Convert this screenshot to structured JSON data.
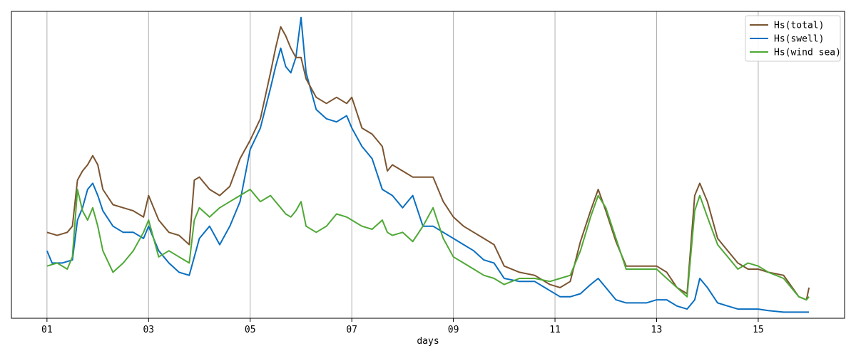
{
  "chart_data": {
    "type": "line",
    "title": "",
    "xlabel": "days",
    "ylabel": "",
    "x_ticks": [
      {
        "day": 1,
        "label": "01"
      },
      {
        "day": 3,
        "label": "03"
      },
      {
        "day": 5,
        "label": "05"
      },
      {
        "day": 7,
        "label": "07"
      },
      {
        "day": 9,
        "label": "09"
      },
      {
        "day": 11,
        "label": "11"
      },
      {
        "day": 13,
        "label": "13"
      },
      {
        "day": 15,
        "label": "15"
      }
    ],
    "xlim": [
      0.3,
      16.7
    ],
    "ylim": [
      0,
      100
    ],
    "y_axis_values_shown": false,
    "grid": "vertical",
    "legend_position": "top-right",
    "series": [
      {
        "name": "Hs(total)",
        "color": "#7b5430",
        "points": [
          [
            1.0,
            28
          ],
          [
            1.2,
            27
          ],
          [
            1.4,
            28
          ],
          [
            1.5,
            30
          ],
          [
            1.6,
            45
          ],
          [
            1.7,
            48
          ],
          [
            1.8,
            50
          ],
          [
            1.9,
            53
          ],
          [
            2.0,
            50
          ],
          [
            2.1,
            42
          ],
          [
            2.3,
            37
          ],
          [
            2.5,
            36
          ],
          [
            2.7,
            35
          ],
          [
            2.9,
            33
          ],
          [
            3.0,
            40
          ],
          [
            3.2,
            32
          ],
          [
            3.4,
            28
          ],
          [
            3.6,
            27
          ],
          [
            3.8,
            24
          ],
          [
            3.9,
            45
          ],
          [
            4.0,
            46
          ],
          [
            4.2,
            42
          ],
          [
            4.4,
            40
          ],
          [
            4.6,
            43
          ],
          [
            4.8,
            52
          ],
          [
            5.0,
            58
          ],
          [
            5.2,
            65
          ],
          [
            5.4,
            80
          ],
          [
            5.5,
            88
          ],
          [
            5.6,
            95
          ],
          [
            5.7,
            92
          ],
          [
            5.8,
            88
          ],
          [
            5.9,
            85
          ],
          [
            6.0,
            85
          ],
          [
            6.1,
            78
          ],
          [
            6.3,
            72
          ],
          [
            6.5,
            70
          ],
          [
            6.7,
            72
          ],
          [
            6.9,
            70
          ],
          [
            7.0,
            72
          ],
          [
            7.2,
            62
          ],
          [
            7.4,
            60
          ],
          [
            7.6,
            56
          ],
          [
            7.7,
            48
          ],
          [
            7.8,
            50
          ],
          [
            8.0,
            48
          ],
          [
            8.2,
            46
          ],
          [
            8.4,
            46
          ],
          [
            8.6,
            46
          ],
          [
            8.8,
            38
          ],
          [
            9.0,
            33
          ],
          [
            9.2,
            30
          ],
          [
            9.4,
            28
          ],
          [
            9.6,
            26
          ],
          [
            9.8,
            24
          ],
          [
            10.0,
            17
          ],
          [
            10.3,
            15
          ],
          [
            10.6,
            14
          ],
          [
            10.9,
            11
          ],
          [
            11.1,
            10
          ],
          [
            11.3,
            12
          ],
          [
            11.5,
            25
          ],
          [
            11.7,
            35
          ],
          [
            11.85,
            42
          ],
          [
            12.0,
            35
          ],
          [
            12.2,
            25
          ],
          [
            12.4,
            17
          ],
          [
            12.6,
            17
          ],
          [
            12.8,
            17
          ],
          [
            13.0,
            17
          ],
          [
            13.2,
            15
          ],
          [
            13.4,
            10
          ],
          [
            13.6,
            8
          ],
          [
            13.75,
            40
          ],
          [
            13.85,
            44
          ],
          [
            14.0,
            38
          ],
          [
            14.2,
            26
          ],
          [
            14.4,
            22
          ],
          [
            14.6,
            18
          ],
          [
            14.8,
            16
          ],
          [
            15.0,
            16
          ],
          [
            15.2,
            15
          ],
          [
            15.5,
            14
          ],
          [
            15.8,
            7
          ],
          [
            15.95,
            6
          ],
          [
            16.0,
            10
          ]
        ]
      },
      {
        "name": "Hs(swell)",
        "color": "#0a6fc0",
        "points": [
          [
            1.0,
            22
          ],
          [
            1.1,
            18
          ],
          [
            1.3,
            18
          ],
          [
            1.5,
            19
          ],
          [
            1.6,
            32
          ],
          [
            1.7,
            36
          ],
          [
            1.8,
            42
          ],
          [
            1.9,
            44
          ],
          [
            2.0,
            40
          ],
          [
            2.1,
            35
          ],
          [
            2.3,
            30
          ],
          [
            2.5,
            28
          ],
          [
            2.7,
            28
          ],
          [
            2.9,
            26
          ],
          [
            3.0,
            30
          ],
          [
            3.2,
            22
          ],
          [
            3.4,
            18
          ],
          [
            3.6,
            15
          ],
          [
            3.8,
            14
          ],
          [
            3.9,
            20
          ],
          [
            4.0,
            26
          ],
          [
            4.2,
            30
          ],
          [
            4.4,
            24
          ],
          [
            4.6,
            30
          ],
          [
            4.8,
            38
          ],
          [
            5.0,
            55
          ],
          [
            5.2,
            62
          ],
          [
            5.4,
            75
          ],
          [
            5.5,
            82
          ],
          [
            5.6,
            88
          ],
          [
            5.7,
            82
          ],
          [
            5.8,
            80
          ],
          [
            5.9,
            85
          ],
          [
            6.0,
            98
          ],
          [
            6.1,
            80
          ],
          [
            6.3,
            68
          ],
          [
            6.5,
            65
          ],
          [
            6.7,
            64
          ],
          [
            6.9,
            66
          ],
          [
            7.0,
            62
          ],
          [
            7.2,
            56
          ],
          [
            7.4,
            52
          ],
          [
            7.6,
            42
          ],
          [
            7.8,
            40
          ],
          [
            8.0,
            36
          ],
          [
            8.2,
            40
          ],
          [
            8.4,
            30
          ],
          [
            8.6,
            30
          ],
          [
            8.8,
            28
          ],
          [
            9.0,
            26
          ],
          [
            9.2,
            24
          ],
          [
            9.4,
            22
          ],
          [
            9.6,
            19
          ],
          [
            9.8,
            18
          ],
          [
            10.0,
            13
          ],
          [
            10.3,
            12
          ],
          [
            10.6,
            12
          ],
          [
            10.9,
            9
          ],
          [
            11.1,
            7
          ],
          [
            11.3,
            7
          ],
          [
            11.5,
            8
          ],
          [
            11.7,
            11
          ],
          [
            11.85,
            13
          ],
          [
            12.0,
            10
          ],
          [
            12.2,
            6
          ],
          [
            12.4,
            5
          ],
          [
            12.6,
            5
          ],
          [
            12.8,
            5
          ],
          [
            13.0,
            6
          ],
          [
            13.2,
            6
          ],
          [
            13.4,
            4
          ],
          [
            13.6,
            3
          ],
          [
            13.75,
            6
          ],
          [
            13.85,
            13
          ],
          [
            14.0,
            10
          ],
          [
            14.2,
            5
          ],
          [
            14.4,
            4
          ],
          [
            14.6,
            3
          ],
          [
            14.8,
            3
          ],
          [
            15.0,
            3
          ],
          [
            15.2,
            2.5
          ],
          [
            15.5,
            2
          ],
          [
            15.8,
            2
          ],
          [
            15.95,
            2
          ],
          [
            16.0,
            2
          ]
        ]
      },
      {
        "name": "Hs(wind sea)",
        "color": "#4fa836",
        "points": [
          [
            1.0,
            17
          ],
          [
            1.2,
            18
          ],
          [
            1.4,
            16
          ],
          [
            1.5,
            20
          ],
          [
            1.6,
            42
          ],
          [
            1.7,
            35
          ],
          [
            1.8,
            32
          ],
          [
            1.9,
            36
          ],
          [
            2.0,
            30
          ],
          [
            2.1,
            22
          ],
          [
            2.3,
            15
          ],
          [
            2.5,
            18
          ],
          [
            2.7,
            22
          ],
          [
            2.9,
            28
          ],
          [
            3.0,
            32
          ],
          [
            3.2,
            20
          ],
          [
            3.4,
            22
          ],
          [
            3.6,
            20
          ],
          [
            3.8,
            18
          ],
          [
            3.9,
            32
          ],
          [
            4.0,
            36
          ],
          [
            4.2,
            33
          ],
          [
            4.4,
            36
          ],
          [
            4.6,
            38
          ],
          [
            4.8,
            40
          ],
          [
            5.0,
            42
          ],
          [
            5.2,
            38
          ],
          [
            5.4,
            40
          ],
          [
            5.5,
            38
          ],
          [
            5.6,
            36
          ],
          [
            5.7,
            34
          ],
          [
            5.8,
            33
          ],
          [
            5.9,
            35
          ],
          [
            6.0,
            38
          ],
          [
            6.1,
            30
          ],
          [
            6.3,
            28
          ],
          [
            6.5,
            30
          ],
          [
            6.7,
            34
          ],
          [
            6.9,
            33
          ],
          [
            7.0,
            32
          ],
          [
            7.2,
            30
          ],
          [
            7.4,
            29
          ],
          [
            7.6,
            32
          ],
          [
            7.7,
            28
          ],
          [
            7.8,
            27
          ],
          [
            8.0,
            28
          ],
          [
            8.2,
            25
          ],
          [
            8.4,
            30
          ],
          [
            8.6,
            36
          ],
          [
            8.8,
            26
          ],
          [
            9.0,
            20
          ],
          [
            9.2,
            18
          ],
          [
            9.4,
            16
          ],
          [
            9.6,
            14
          ],
          [
            9.8,
            13
          ],
          [
            10.0,
            11
          ],
          [
            10.3,
            13
          ],
          [
            10.6,
            13
          ],
          [
            10.9,
            12
          ],
          [
            11.1,
            13
          ],
          [
            11.3,
            14
          ],
          [
            11.5,
            22
          ],
          [
            11.7,
            33
          ],
          [
            11.85,
            40
          ],
          [
            12.0,
            36
          ],
          [
            12.2,
            26
          ],
          [
            12.4,
            16
          ],
          [
            12.6,
            16
          ],
          [
            12.8,
            16
          ],
          [
            13.0,
            16
          ],
          [
            13.2,
            13
          ],
          [
            13.4,
            10
          ],
          [
            13.6,
            7
          ],
          [
            13.75,
            35
          ],
          [
            13.85,
            40
          ],
          [
            14.0,
            33
          ],
          [
            14.2,
            24
          ],
          [
            14.4,
            20
          ],
          [
            14.6,
            16
          ],
          [
            14.8,
            18
          ],
          [
            15.0,
            17
          ],
          [
            15.2,
            15
          ],
          [
            15.5,
            13
          ],
          [
            15.8,
            7
          ],
          [
            15.95,
            6
          ],
          [
            16.0,
            7
          ]
        ]
      }
    ]
  }
}
